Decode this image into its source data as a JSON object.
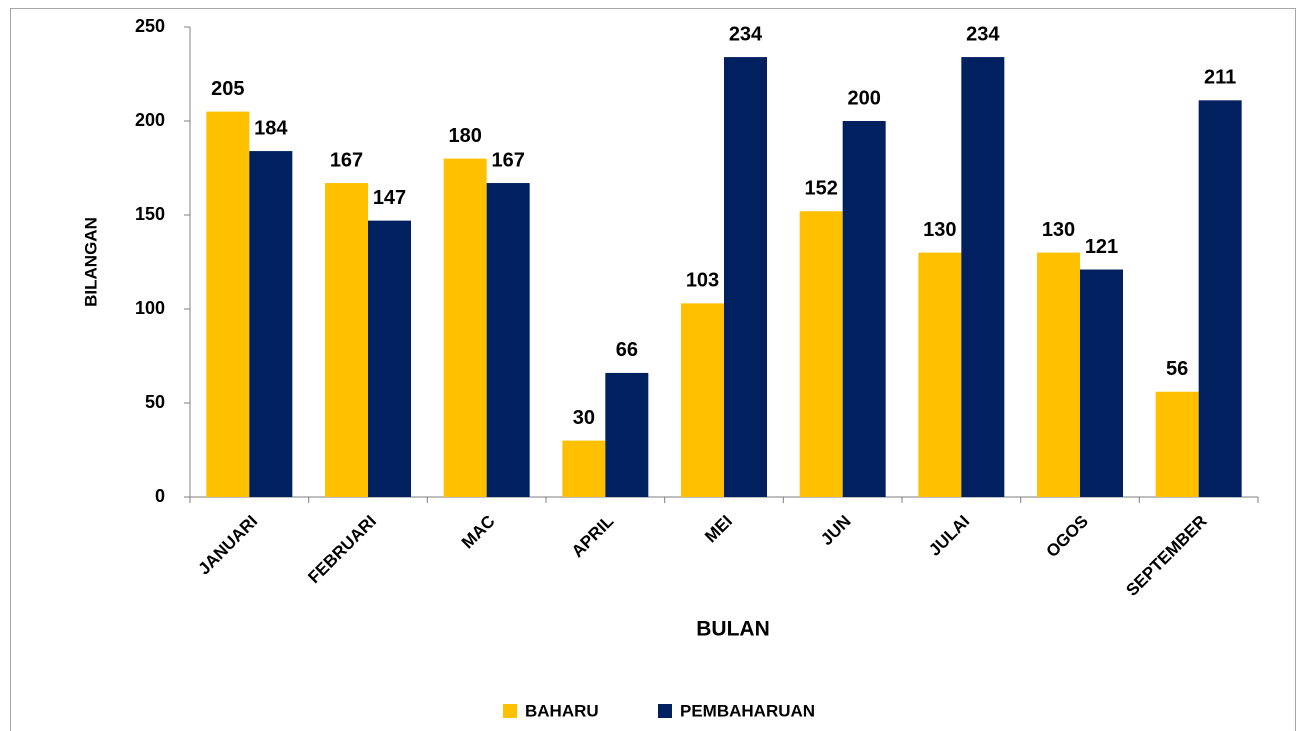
{
  "chart_data": {
    "type": "bar",
    "categories": [
      "JANUARI",
      "FEBRUARI",
      "MAC",
      "APRIL",
      "MEI",
      "JUN",
      "JULAI",
      "OGOS",
      "SEPTEMBER"
    ],
    "series": [
      {
        "name": "BAHARU",
        "color": "#FFC000",
        "values": [
          205,
          167,
          180,
          30,
          103,
          152,
          130,
          130,
          56
        ]
      },
      {
        "name": "PEMBAHARUAN",
        "color": "#002060",
        "values": [
          184,
          147,
          167,
          66,
          234,
          200,
          234,
          121,
          211
        ]
      }
    ],
    "xlabel": "BULAN",
    "ylabel": "BILANGAN",
    "ylim": [
      0,
      250
    ],
    "yticks": [
      0,
      50,
      100,
      150,
      200,
      250
    ],
    "grid": false,
    "legend": "bottom"
  }
}
